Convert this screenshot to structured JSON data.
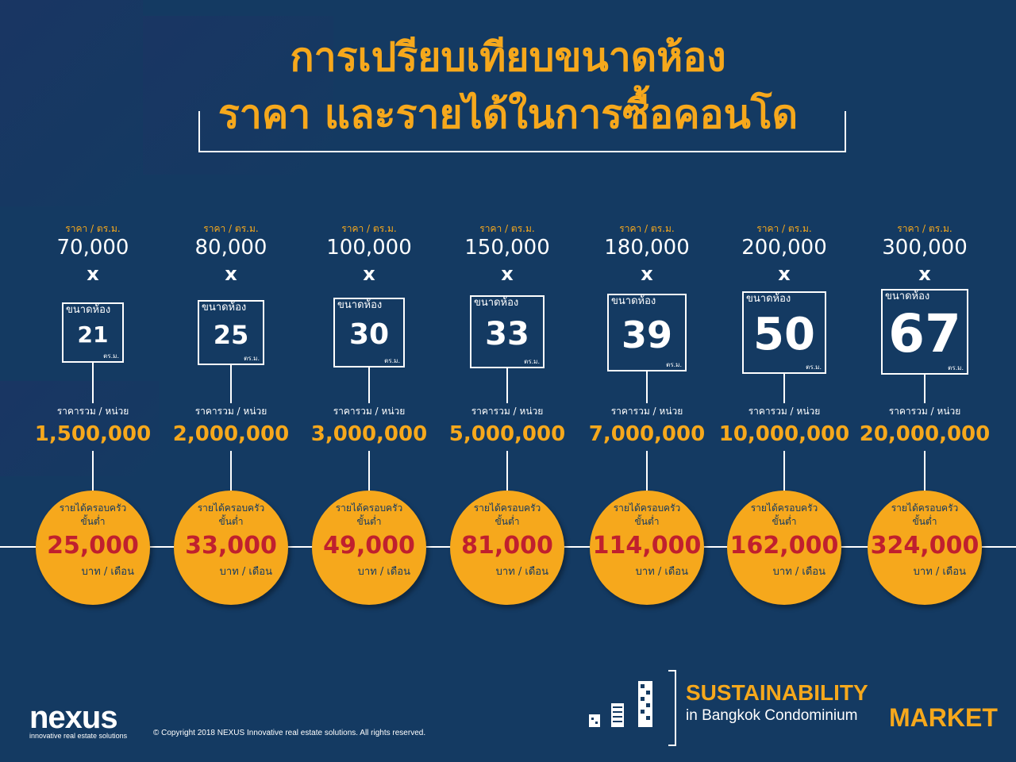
{
  "title": {
    "line1": "การเปรียบเทียบขนาดห้อง",
    "line2": "ราคา และรายได้ในการซื้อคอนโด"
  },
  "labels": {
    "price_per_sqm": "ราคา / ตร.ม.",
    "times": "x",
    "room_size": "ขนาดห้อง",
    "sqm_unit": "ตร.ม.",
    "total_price": "ราคารวม / หน่วย",
    "income_line1": "รายได้ครอบครัว",
    "income_line2": "ขั้นต่ำ",
    "income_unit": "บาท / เดือน"
  },
  "columns": [
    {
      "price_per_sqm": "70,000",
      "size": "21",
      "total": "1,500,000",
      "income": "25,000"
    },
    {
      "price_per_sqm": "80,000",
      "size": "25",
      "total": "2,000,000",
      "income": "33,000"
    },
    {
      "price_per_sqm": "100,000",
      "size": "30",
      "total": "3,000,000",
      "income": "49,000"
    },
    {
      "price_per_sqm": "150,000",
      "size": "33",
      "total": "5,000,000",
      "income": "81,000"
    },
    {
      "price_per_sqm": "180,000",
      "size": "39",
      "total": "7,000,000",
      "income": "114,000"
    },
    {
      "price_per_sqm": "200,000",
      "size": "50",
      "total": "10,000,000",
      "income": "162,000"
    },
    {
      "price_per_sqm": "300,000",
      "size": "67",
      "total": "20,000,000",
      "income": "324,000"
    }
  ],
  "footer": {
    "logo_name": "nexus",
    "logo_tagline": "innovative real estate solutions",
    "copyright": "© Copyright 2018 NEXUS Innovative real estate solutions. All rights reserved.",
    "brand_line1": "SUSTAINABILITY",
    "brand_line2": "in Bangkok Condominium",
    "brand_line3": "MARKET"
  },
  "colors": {
    "background": "#143a62",
    "accent": "#f6a81c",
    "income": "#c0202e",
    "text": "#ffffff"
  }
}
